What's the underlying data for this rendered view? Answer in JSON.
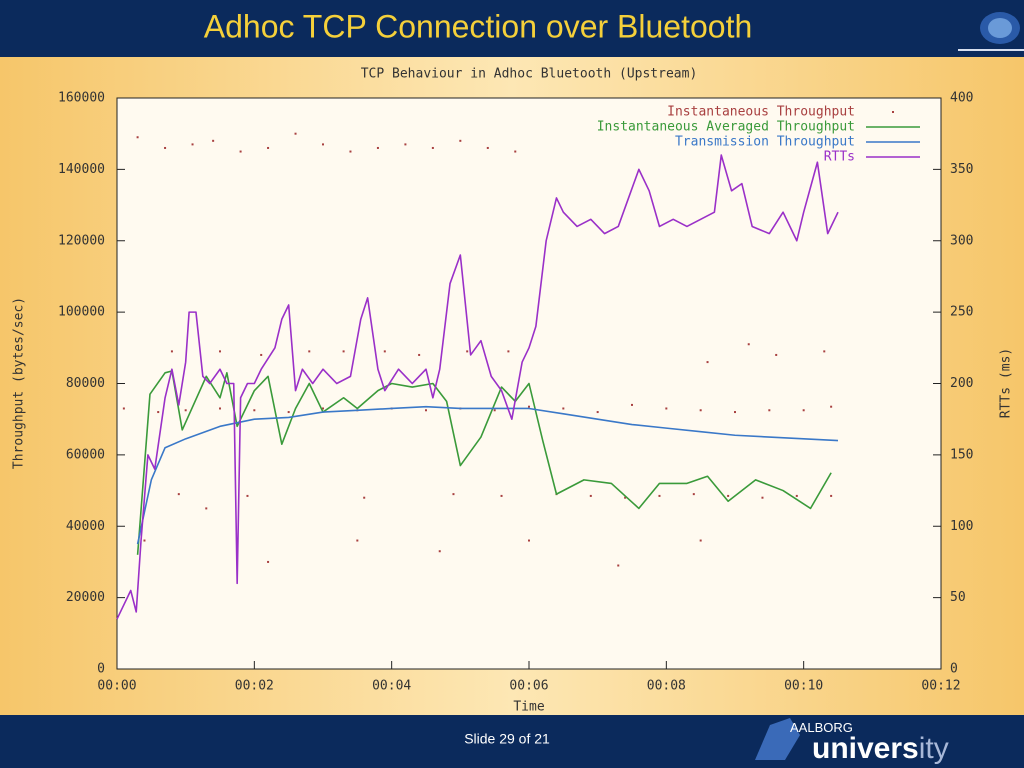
{
  "slide": {
    "title": "Adhoc TCP Connection over Bluetooth",
    "footer": "Slide 29 of 21",
    "logo": {
      "top": "AALBORG",
      "parts": [
        "univers",
        "ity"
      ]
    }
  },
  "chart_data": {
    "type": "line",
    "title": "TCP Behaviour in Adhoc Bluetooth (Upstream)",
    "xlabel": "Time",
    "ylabel": "Throughput (bytes/sec)",
    "y2label": "RTTs (ms)",
    "xlim": [
      0,
      12
    ],
    "xticks": [
      {
        "value": 0,
        "label": "00:00"
      },
      {
        "value": 2,
        "label": "00:02"
      },
      {
        "value": 4,
        "label": "00:04"
      },
      {
        "value": 6,
        "label": "00:06"
      },
      {
        "value": 8,
        "label": "00:08"
      },
      {
        "value": 10,
        "label": "00:10"
      },
      {
        "value": 12,
        "label": "00:12"
      }
    ],
    "ylim": [
      0,
      160000
    ],
    "yticks": [
      0,
      20000,
      40000,
      60000,
      80000,
      100000,
      120000,
      140000,
      160000
    ],
    "y2lim": [
      0,
      400
    ],
    "y2ticks": [
      0,
      50,
      100,
      150,
      200,
      250,
      300,
      350,
      400
    ],
    "legend": "top-right",
    "series": [
      {
        "name": "Instantaneous Throughput",
        "color": "#a84040",
        "style": "points",
        "x": [
          0.3,
          0.7,
          1.1,
          1.4,
          1.8,
          2.2,
          2.6,
          3.0,
          3.4,
          3.8,
          4.2,
          4.6,
          5.0,
          5.4,
          5.8,
          0.8,
          1.5,
          2.1,
          2.8,
          3.3,
          3.9,
          4.4,
          5.1,
          5.7,
          8.6,
          9.2,
          9.6,
          10.3,
          0.1,
          0.6,
          1.0,
          1.5,
          2.0,
          2.5,
          3.0,
          3.5,
          4.0,
          4.5,
          5.0,
          5.5,
          6.0,
          6.5,
          7.0,
          7.5,
          8.0,
          8.5,
          9.0,
          9.5,
          10.0,
          10.4,
          0.9,
          1.9,
          3.6,
          4.9,
          5.6,
          6.4,
          6.9,
          7.4,
          7.9,
          8.4,
          8.9,
          9.4,
          9.9,
          10.4,
          0.4,
          1.3,
          2.2,
          3.5,
          4.7,
          6.0,
          7.3,
          8.5
        ],
        "values": [
          149000,
          146000,
          147000,
          148000,
          145000,
          146000,
          150000,
          147000,
          145000,
          146000,
          147000,
          146000,
          148000,
          146000,
          145000,
          89000,
          89000,
          88000,
          89000,
          89000,
          89000,
          88000,
          89000,
          89000,
          86000,
          91000,
          88000,
          89000,
          73000,
          72000,
          72500,
          73000,
          72500,
          72000,
          73000,
          72500,
          73000,
          72500,
          73000,
          72500,
          73500,
          73000,
          72000,
          74000,
          73000,
          72500,
          72000,
          72500,
          72500,
          73500,
          49000,
          48500,
          48000,
          49000,
          48500,
          49000,
          48500,
          48000,
          48500,
          49000,
          48500,
          48000,
          48500,
          48500,
          36000,
          45000,
          30000,
          36000,
          33000,
          36000,
          29000,
          36000
        ]
      },
      {
        "name": "Instantaneous Averaged Throughput",
        "color": "#3a9a3a",
        "style": "lines",
        "x": [
          0.3,
          0.48,
          0.7,
          0.8,
          0.95,
          1.3,
          1.5,
          1.6,
          1.75,
          2.0,
          2.2,
          2.4,
          2.6,
          2.8,
          3.0,
          3.3,
          3.5,
          3.8,
          4.0,
          4.3,
          4.6,
          4.8,
          5.0,
          5.3,
          5.6,
          5.8,
          6.0,
          6.2,
          6.4,
          6.8,
          7.2,
          7.6,
          7.9,
          8.3,
          8.6,
          8.9,
          9.3,
          9.7,
          10.1,
          10.4
        ],
        "values": [
          32000,
          77000,
          83000,
          83500,
          67000,
          82000,
          76000,
          83000,
          68000,
          78000,
          82000,
          63000,
          73000,
          80000,
          72000,
          76000,
          73000,
          78000,
          80000,
          79000,
          80000,
          75000,
          57000,
          65000,
          79000,
          75000,
          80000,
          64000,
          49000,
          53000,
          52000,
          45000,
          52000,
          52000,
          54000,
          47000,
          53000,
          50000,
          45000,
          55000
        ]
      },
      {
        "name": "Transmission Throughput",
        "color": "#3a78c8",
        "style": "lines",
        "x": [
          0.3,
          0.5,
          0.7,
          1.0,
          1.5,
          2.0,
          2.5,
          3.0,
          3.5,
          4.0,
          4.5,
          5.0,
          5.5,
          6.0,
          6.5,
          7.0,
          7.5,
          8.0,
          8.5,
          9.0,
          9.5,
          10.0,
          10.5
        ],
        "values": [
          35000,
          53000,
          62000,
          64500,
          68000,
          70000,
          70500,
          72000,
          72500,
          73000,
          73500,
          73000,
          73000,
          73000,
          71500,
          70000,
          68500,
          67500,
          66500,
          65500,
          65000,
          64500,
          64000
        ]
      },
      {
        "name": "RTTs",
        "color": "#9a30c8",
        "style": "lines",
        "axis": "y2",
        "x": [
          0,
          0.2,
          0.28,
          0.35,
          0.45,
          0.55,
          0.7,
          0.8,
          0.9,
          1.0,
          1.05,
          1.15,
          1.25,
          1.35,
          1.5,
          1.6,
          1.7,
          1.75,
          1.8,
          1.9,
          2.0,
          2.1,
          2.3,
          2.4,
          2.5,
          2.6,
          2.7,
          2.85,
          3.0,
          3.2,
          3.4,
          3.55,
          3.65,
          3.8,
          3.9,
          4.1,
          4.3,
          4.5,
          4.6,
          4.7,
          4.85,
          5.0,
          5.15,
          5.3,
          5.45,
          5.6,
          5.75,
          5.9,
          6.0,
          6.1,
          6.25,
          6.4,
          6.5,
          6.7,
          6.9,
          7.1,
          7.3,
          7.45,
          7.6,
          7.75,
          7.9,
          8.1,
          8.3,
          8.5,
          8.7,
          8.8,
          8.95,
          9.1,
          9.25,
          9.5,
          9.7,
          9.9,
          10.0,
          10.2,
          10.35,
          10.5
        ],
        "values": [
          35,
          55,
          40,
          90,
          150,
          140,
          190,
          210,
          185,
          215,
          250,
          250,
          205,
          200,
          210,
          200,
          200,
          60,
          190,
          200,
          200,
          210,
          225,
          245,
          255,
          195,
          210,
          200,
          210,
          200,
          205,
          245,
          260,
          210,
          195,
          210,
          200,
          210,
          190,
          210,
          270,
          290,
          220,
          230,
          205,
          195,
          175,
          215,
          225,
          240,
          300,
          330,
          320,
          310,
          315,
          305,
          310,
          330,
          350,
          335,
          310,
          315,
          310,
          315,
          320,
          360,
          335,
          340,
          310,
          305,
          320,
          300,
          320,
          355,
          305,
          320
        ]
      }
    ]
  }
}
